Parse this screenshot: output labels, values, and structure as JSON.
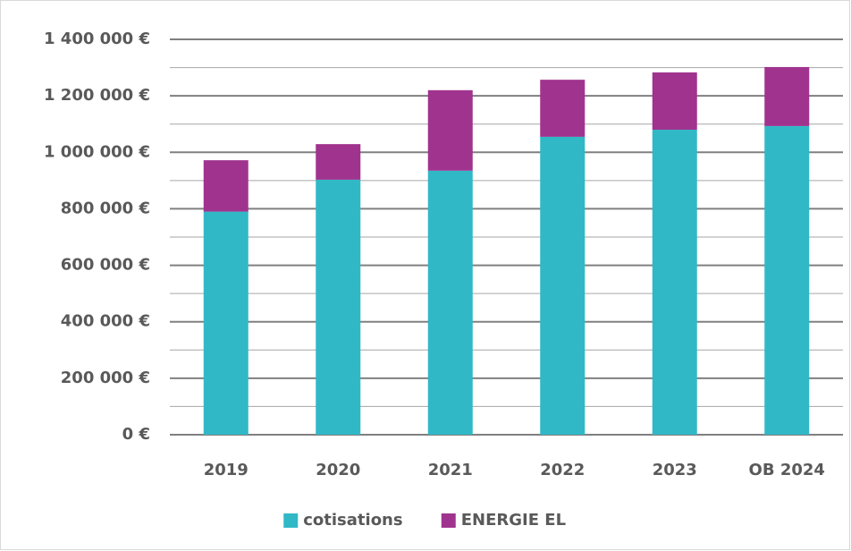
{
  "chart_data": {
    "type": "stacked_bar",
    "categories": [
      "2019",
      "2020",
      "2021",
      "2022",
      "2023",
      "OB 2024"
    ],
    "series": [
      {
        "name": "cotisations",
        "color": "#31b8c6",
        "values": [
          790000,
          903000,
          935000,
          1055000,
          1080000,
          1093000
        ]
      },
      {
        "name": "ENERGIE EL",
        "color": "#a0338e",
        "values": [
          182000,
          126000,
          285000,
          202000,
          203000,
          209000
        ]
      }
    ],
    "ylim": [
      0,
      1400000
    ],
    "yticks": [
      {
        "value": 0,
        "label": "0 €"
      },
      {
        "value": 200000,
        "label": "200 000 €"
      },
      {
        "value": 400000,
        "label": "400 000 €"
      },
      {
        "value": 600000,
        "label": "600 000 €"
      },
      {
        "value": 800000,
        "label": "800 000 €"
      },
      {
        "value": 1000000,
        "label": "1 000 000 €"
      },
      {
        "value": 1200000,
        "label": "1 200 000 €"
      },
      {
        "value": 1400000,
        "label": "1 400 000 €"
      }
    ],
    "minor_yticks": [
      100000,
      300000,
      500000,
      700000,
      900000,
      1100000,
      1300000
    ],
    "grid": true,
    "legend": "bottom"
  }
}
